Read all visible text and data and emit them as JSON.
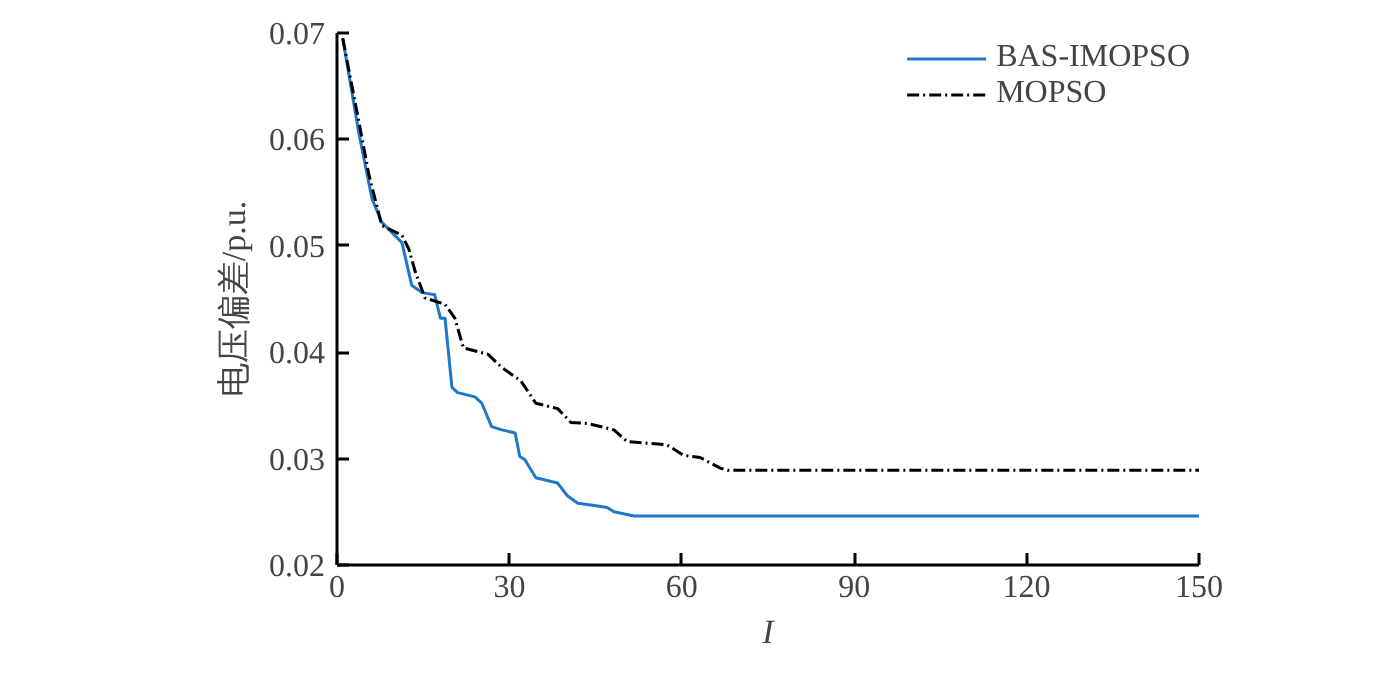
{
  "chart_data": {
    "type": "line",
    "xlabel": "I",
    "ylabel": "电压偏差/p.u.",
    "xlim": [
      0,
      150
    ],
    "ylim": [
      0.02,
      0.07
    ],
    "xticks": [
      0,
      30,
      60,
      90,
      120,
      150
    ],
    "yticks": [
      0.02,
      0.03,
      0.04,
      0.05,
      0.06,
      0.07
    ],
    "grid": false,
    "legend": "top right",
    "series": [
      {
        "name": "BAS-IMOPSO",
        "color": "#1f77c8",
        "line_style": "solid",
        "x": [
          1,
          3.8,
          6.1,
          7.8,
          11.3,
          13,
          14.8,
          17,
          18,
          18.8,
          20,
          21,
          24,
          25.2,
          26.9,
          28.7,
          31,
          31.8,
          32.7,
          34.6,
          38.4,
          40.1,
          41.9,
          44.8,
          47,
          48.2,
          51.7,
          150
        ],
        "values": [
          0.0695,
          0.0606,
          0.0544,
          0.0522,
          0.0503,
          0.0463,
          0.0456,
          0.0454,
          0.0432,
          0.0432,
          0.0367,
          0.0362,
          0.0358,
          0.0352,
          0.033,
          0.0327,
          0.0324,
          0.0302,
          0.0299,
          0.0282,
          0.0277,
          0.0265,
          0.0258,
          0.0256,
          0.0254,
          0.025,
          0.0246,
          0.0246
        ]
      },
      {
        "name": "MOPSO",
        "color": "#000000",
        "line_style": "dashdot",
        "x": [
          1,
          4.4,
          5.5,
          7.8,
          11.3,
          12.5,
          13.6,
          15.3,
          18.8,
          20.5,
          22,
          26.3,
          28.6,
          32,
          34.6,
          38.4,
          40.7,
          43.6,
          48.2,
          50.5,
          57.4,
          60.3,
          63.2,
          66.7,
          68,
          150
        ],
        "values": [
          0.0695,
          0.06,
          0.0568,
          0.0519,
          0.051,
          0.0497,
          0.0476,
          0.0451,
          0.0445,
          0.0432,
          0.0404,
          0.0398,
          0.0386,
          0.0373,
          0.0352,
          0.0347,
          0.0334,
          0.0333,
          0.0327,
          0.0316,
          0.0313,
          0.0303,
          0.0301,
          0.0291,
          0.0289,
          0.0289
        ]
      }
    ]
  }
}
